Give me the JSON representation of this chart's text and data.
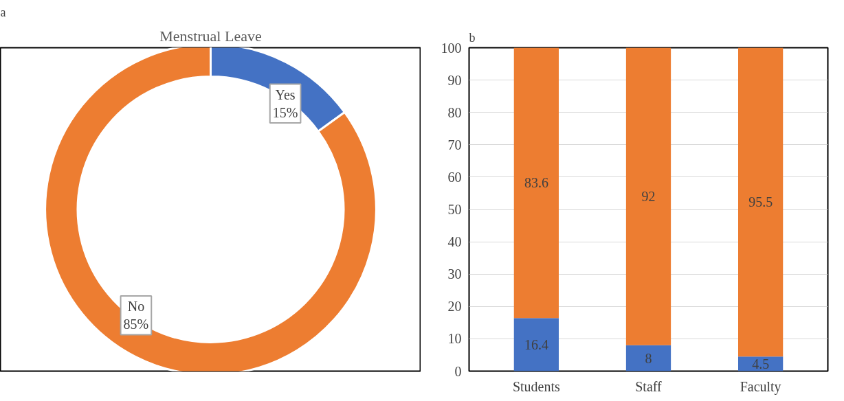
{
  "chart_data": [
    {
      "type": "donut",
      "title": "Menstrual Leave",
      "annotations": [
        "a"
      ],
      "categories": [
        "Yes",
        "No"
      ],
      "values": [
        15,
        85
      ],
      "value_labels": [
        "15%",
        "85%"
      ],
      "colors": [
        "#4472c4",
        "#ed7d31"
      ]
    },
    {
      "type": "bar",
      "stacked": true,
      "annotations": [
        "b"
      ],
      "categories": [
        "Students",
        "Staff",
        "Faculty"
      ],
      "series": [
        {
          "color": "#4472c4",
          "values": [
            16.4,
            8,
            4.5
          ]
        },
        {
          "color": "#ed7d31",
          "values": [
            83.6,
            92,
            95.5
          ]
        }
      ],
      "ylim": [
        0,
        100
      ],
      "yticks": [
        0,
        10,
        20,
        30,
        40,
        50,
        60,
        70,
        80,
        90,
        100
      ],
      "grid": "y",
      "data_labels": true
    }
  ]
}
